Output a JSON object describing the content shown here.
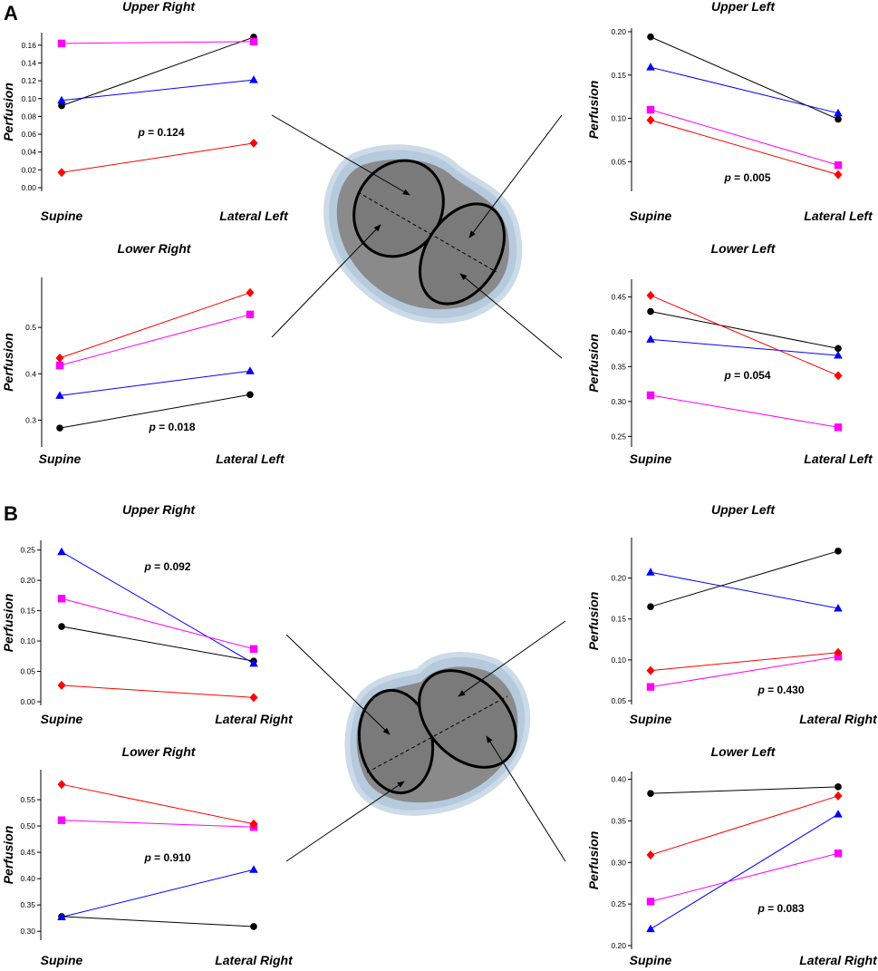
{
  "panel_labels": [
    "A",
    "B"
  ],
  "series_colors": {
    "black": "#000000",
    "blue": "#0000ff",
    "magenta": "#ff00ff",
    "red": "#ff0000"
  },
  "series_markers": {
    "black": "circle",
    "blue": "triangle",
    "magenta": "square",
    "red": "diamond"
  },
  "chart_data": [
    {
      "id": "A-upper-right",
      "panel": "A",
      "type": "line",
      "title": "Upper Right",
      "ylabel": "Perfusion",
      "xlabel": "",
      "categories": [
        "Supine",
        "Lateral Left"
      ],
      "ylim": [
        0,
        0.17
      ],
      "yticks": [
        0.0,
        0.02,
        0.04,
        0.06,
        0.08,
        0.1,
        0.12,
        0.14,
        0.16
      ],
      "ytick_labels": [
        "0.00",
        "0.02",
        "0.04",
        "0.06",
        "0.08",
        "0.10",
        "0.12",
        "0.14",
        "0.16"
      ],
      "series": [
        {
          "name": "black",
          "values": [
            0.092,
            0.169
          ]
        },
        {
          "name": "blue",
          "values": [
            0.098,
            0.121
          ]
        },
        {
          "name": "magenta",
          "values": [
            0.162,
            0.164
          ]
        },
        {
          "name": "red",
          "values": [
            0.017,
            0.05
          ]
        }
      ],
      "annotation": {
        "p_label": "p",
        "p_value": "= 0.124"
      }
    },
    {
      "id": "A-lower-right",
      "panel": "A",
      "type": "line",
      "title": "Lower Right",
      "ylabel": "Perfusion",
      "xlabel": "",
      "categories": [
        "Supine",
        "Lateral Left"
      ],
      "ylim": [
        0.25,
        0.6
      ],
      "yticks": [
        0.3,
        0.4,
        0.5
      ],
      "ytick_labels": [
        "0.3",
        "0.4",
        "0.5"
      ],
      "series": [
        {
          "name": "black",
          "values": [
            0.283,
            0.355
          ]
        },
        {
          "name": "blue",
          "values": [
            0.353,
            0.406
          ]
        },
        {
          "name": "magenta",
          "values": [
            0.418,
            0.528
          ]
        },
        {
          "name": "red",
          "values": [
            0.434,
            0.575
          ]
        }
      ],
      "annotation": {
        "p_label": "p",
        "p_value": "= 0.018"
      }
    },
    {
      "id": "A-upper-left",
      "panel": "A",
      "type": "line",
      "title": "Upper Left",
      "ylabel": "Perfusion",
      "xlabel": "",
      "categories": [
        "Supine",
        "Lateral Left"
      ],
      "ylim": [
        0.02,
        0.2
      ],
      "yticks": [
        0.05,
        0.1,
        0.15,
        0.2
      ],
      "ytick_labels": [
        "0.05",
        "0.10",
        "0.15",
        "0.20"
      ],
      "series": [
        {
          "name": "black",
          "values": [
            0.194,
            0.099
          ]
        },
        {
          "name": "blue",
          "values": [
            0.159,
            0.106
          ]
        },
        {
          "name": "magenta",
          "values": [
            0.11,
            0.046
          ]
        },
        {
          "name": "red",
          "values": [
            0.098,
            0.035
          ]
        }
      ],
      "annotation": {
        "p_label": "p",
        "p_value": "= 0.005"
      }
    },
    {
      "id": "A-lower-left",
      "panel": "A",
      "type": "line",
      "title": "Lower Left",
      "ylabel": "Perfusion",
      "xlabel": "",
      "categories": [
        "Supine",
        "Lateral Left"
      ],
      "ylim": [
        0.24,
        0.47
      ],
      "yticks": [
        0.25,
        0.3,
        0.35,
        0.4,
        0.45
      ],
      "ytick_labels": [
        "0.25",
        "0.30",
        "0.35",
        "0.40",
        "0.45"
      ],
      "series": [
        {
          "name": "black",
          "values": [
            0.429,
            0.376
          ]
        },
        {
          "name": "blue",
          "values": [
            0.389,
            0.366
          ]
        },
        {
          "name": "magenta",
          "values": [
            0.309,
            0.263
          ]
        },
        {
          "name": "red",
          "values": [
            0.452,
            0.337
          ]
        }
      ],
      "annotation": {
        "p_label": "p",
        "p_value": "= 0.054"
      }
    },
    {
      "id": "B-upper-right",
      "panel": "B",
      "type": "line",
      "title": "Upper Right",
      "ylabel": "Perfusion",
      "xlabel": "",
      "categories": [
        "Supine",
        "Lateral Right"
      ],
      "ylim": [
        0,
        0.26
      ],
      "yticks": [
        0.0,
        0.05,
        0.1,
        0.15,
        0.2,
        0.25
      ],
      "ytick_labels": [
        "0.00",
        "0.05",
        "0.10",
        "0.15",
        "0.20",
        "0.25"
      ],
      "series": [
        {
          "name": "black",
          "values": [
            0.124,
            0.067
          ]
        },
        {
          "name": "blue",
          "values": [
            0.247,
            0.063
          ]
        },
        {
          "name": "magenta",
          "values": [
            0.17,
            0.087
          ]
        },
        {
          "name": "red",
          "values": [
            0.027,
            0.007
          ]
        }
      ],
      "annotation": {
        "p_label": "p",
        "p_value": "= 0.092"
      }
    },
    {
      "id": "B-lower-right",
      "panel": "B",
      "type": "line",
      "title": "Lower Right",
      "ylabel": "Perfusion",
      "xlabel": "",
      "categories": [
        "Supine",
        "Lateral Right"
      ],
      "ylim": [
        0.29,
        0.6
      ],
      "yticks": [
        0.3,
        0.35,
        0.4,
        0.45,
        0.5,
        0.55
      ],
      "ytick_labels": [
        "0.30",
        "0.35",
        "0.40",
        "0.45",
        "0.50",
        "0.55"
      ],
      "series": [
        {
          "name": "black",
          "values": [
            0.328,
            0.309
          ]
        },
        {
          "name": "blue",
          "values": [
            0.327,
            0.417
          ]
        },
        {
          "name": "magenta",
          "values": [
            0.511,
            0.498
          ]
        },
        {
          "name": "red",
          "values": [
            0.579,
            0.504
          ]
        }
      ],
      "annotation": {
        "p_label": "p",
        "p_value": "= 0.910"
      }
    },
    {
      "id": "B-upper-left",
      "panel": "B",
      "type": "line",
      "title": "Upper Left",
      "ylabel": "Perfusion",
      "xlabel": "",
      "categories": [
        "Supine",
        "Lateral Right"
      ],
      "ylim": [
        0.05,
        0.245
      ],
      "yticks": [
        0.05,
        0.1,
        0.15,
        0.2
      ],
      "ytick_labels": [
        "0.05",
        "0.10",
        "0.15",
        "0.20"
      ],
      "series": [
        {
          "name": "black",
          "values": [
            0.165,
            0.233
          ]
        },
        {
          "name": "blue",
          "values": [
            0.207,
            0.163
          ]
        },
        {
          "name": "magenta",
          "values": [
            0.067,
            0.104
          ]
        },
        {
          "name": "red",
          "values": [
            0.087,
            0.109
          ]
        }
      ],
      "annotation": {
        "p_label": "p",
        "p_value": "= 0.430"
      }
    },
    {
      "id": "B-lower-left",
      "panel": "B",
      "type": "line",
      "title": "Lower Left",
      "ylabel": "Perfusion",
      "xlabel": "",
      "categories": [
        "Supine",
        "Lateral Right"
      ],
      "ylim": [
        0.2,
        0.405
      ],
      "yticks": [
        0.2,
        0.25,
        0.3,
        0.35,
        0.4
      ],
      "ytick_labels": [
        "0.20",
        "0.25",
        "0.30",
        "0.35",
        "0.40"
      ],
      "series": [
        {
          "name": "black",
          "values": [
            0.383,
            0.391
          ]
        },
        {
          "name": "blue",
          "values": [
            0.22,
            0.358
          ]
        },
        {
          "name": "magenta",
          "values": [
            0.253,
            0.311
          ]
        },
        {
          "name": "red",
          "values": [
            0.309,
            0.38
          ]
        }
      ],
      "annotation": {
        "p_label": "p",
        "p_value": "= 0.083"
      }
    }
  ]
}
